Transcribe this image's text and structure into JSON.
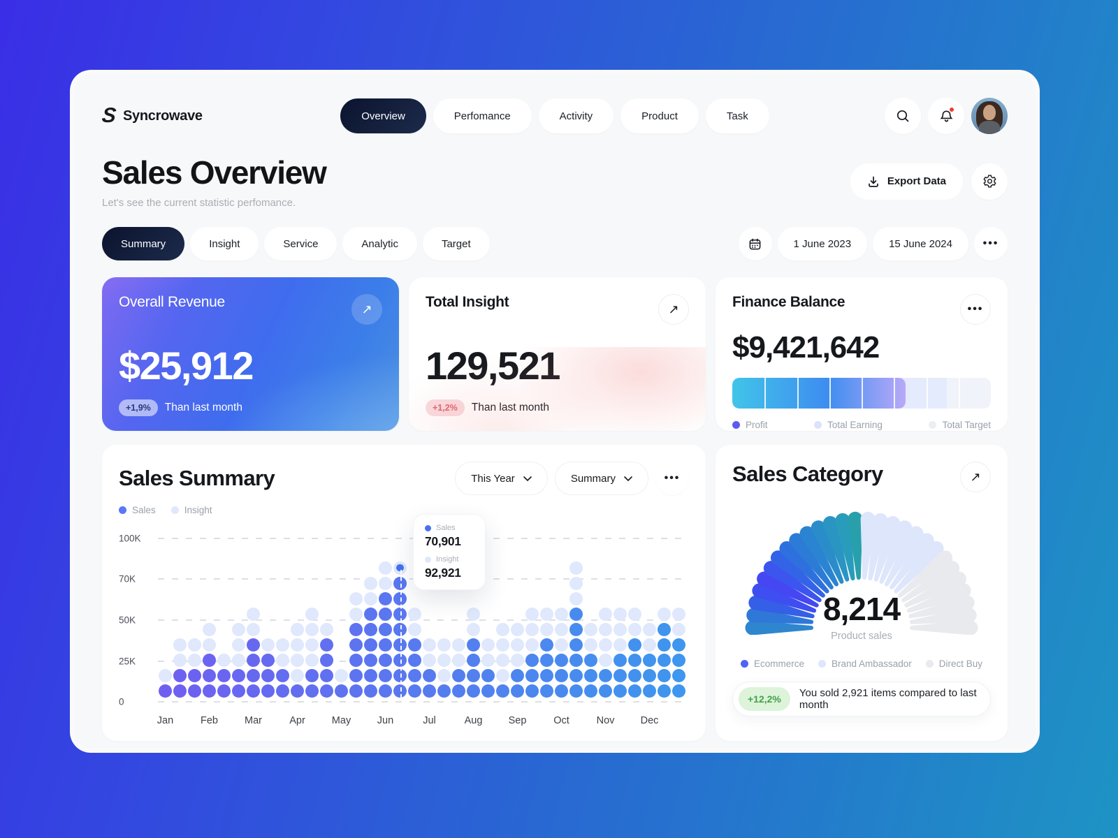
{
  "brand": {
    "name": "Syncrowave"
  },
  "nav": {
    "items": [
      {
        "label": "Overview",
        "active": true
      },
      {
        "label": "Perfomance",
        "active": false
      },
      {
        "label": "Activity",
        "active": false
      },
      {
        "label": "Product",
        "active": false
      },
      {
        "label": "Task",
        "active": false
      }
    ]
  },
  "header_icons": {
    "search": "search-icon",
    "notifications": "bell-icon",
    "avatar": "user-avatar"
  },
  "page": {
    "title": "Sales Overview",
    "subtitle": "Let's see the current statistic perfomance.",
    "export_label": "Export Data"
  },
  "filters": {
    "tabs": [
      {
        "label": "Summary",
        "active": true
      },
      {
        "label": "Insight",
        "active": false
      },
      {
        "label": "Service",
        "active": false
      },
      {
        "label": "Analytic",
        "active": false
      },
      {
        "label": "Target",
        "active": false
      }
    ],
    "date_from": "1 June 2023",
    "date_to": "15 June 2024",
    "more": "•••"
  },
  "cards": {
    "overall_revenue": {
      "title": "Overall Revenue",
      "value": "$25,912",
      "badge": "+1,9%",
      "note": "Than last month"
    },
    "total_insight": {
      "title": "Total Insight",
      "value": "129,521",
      "badge": "+1,2%",
      "note": "Than last month"
    },
    "finance_balance": {
      "title": "Finance Balance",
      "value": "$9,421,642",
      "more": "•••",
      "progress": {
        "fill_percent": 67,
        "secondary_end_percent": 83,
        "segments": 8
      },
      "legend": [
        {
          "label": "Profit",
          "color": "#5a5bf3"
        },
        {
          "label": "Total Earning",
          "color": "#dbe3fb"
        },
        {
          "label": "Total Target",
          "color": "#eceef2"
        }
      ]
    }
  },
  "sales_summary": {
    "title": "Sales Summary",
    "period_select": "This Year",
    "view_select": "Summary",
    "more": "•••",
    "legend": [
      {
        "label": "Sales",
        "color": "#5b76f7"
      },
      {
        "label": "Insight",
        "color": "#dfe8fc"
      }
    ],
    "chart_data": {
      "type": "stacked-dot-columns",
      "y_ticks": [
        "100K",
        "70K",
        "50K",
        "25K",
        "0"
      ],
      "months": [
        "Jan",
        "Feb",
        "Mar",
        "Apr",
        "May",
        "Jun",
        "Jul",
        "Aug",
        "Sep",
        "Oct",
        "Nov",
        "Dec"
      ],
      "series": [
        "Sales",
        "Insight"
      ],
      "columns_per_month": 3,
      "columns": [
        {
          "sales": 1,
          "insight": 1
        },
        {
          "sales": 2,
          "insight": 2
        },
        {
          "sales": 2,
          "insight": 2
        },
        {
          "sales": 3,
          "insight": 2
        },
        {
          "sales": 2,
          "insight": 1
        },
        {
          "sales": 2,
          "insight": 3
        },
        {
          "sales": 4,
          "insight": 2
        },
        {
          "sales": 3,
          "insight": 1
        },
        {
          "sales": 2,
          "insight": 2
        },
        {
          "sales": 1,
          "insight": 4
        },
        {
          "sales": 2,
          "insight": 4
        },
        {
          "sales": 4,
          "insight": 1
        },
        {
          "sales": 1,
          "insight": 1
        },
        {
          "sales": 5,
          "insight": 2
        },
        {
          "sales": 6,
          "insight": 2
        },
        {
          "sales": 7,
          "insight": 2
        },
        {
          "sales": 8,
          "insight": 0
        },
        {
          "sales": 4,
          "insight": 2
        },
        {
          "sales": 2,
          "insight": 2
        },
        {
          "sales": 1,
          "insight": 3
        },
        {
          "sales": 2,
          "insight": 2
        },
        {
          "sales": 4,
          "insight": 2
        },
        {
          "sales": 2,
          "insight": 2
        },
        {
          "sales": 1,
          "insight": 4
        },
        {
          "sales": 2,
          "insight": 3
        },
        {
          "sales": 3,
          "insight": 3
        },
        {
          "sales": 4,
          "insight": 2
        },
        {
          "sales": 3,
          "insight": 3
        },
        {
          "sales": 6,
          "insight": 3
        },
        {
          "sales": 3,
          "insight": 2
        },
        {
          "sales": 2,
          "insight": 4
        },
        {
          "sales": 3,
          "insight": 3
        },
        {
          "sales": 4,
          "insight": 2
        },
        {
          "sales": 3,
          "insight": 2
        },
        {
          "sales": 5,
          "insight": 1
        },
        {
          "sales": 4,
          "insight": 2
        }
      ],
      "highlight": {
        "column_index": 16,
        "month": "Jun",
        "tooltip": {
          "sales_label": "Sales",
          "sales_value": "70,901",
          "insight_label": "Insight",
          "insight_value": "92,921"
        }
      },
      "colors": {
        "sales_start": "#6f5ff1",
        "sales_end": "#3e96ee",
        "insight": "#dfe8fc"
      }
    }
  },
  "sales_category": {
    "title": "Sales Category",
    "total": "8,214",
    "total_label": "Product sales",
    "legend": [
      {
        "label": "Ecommerce",
        "color": "#4f63f3"
      },
      {
        "label": "Brand Ambassador",
        "color": "#dde6fb"
      },
      {
        "label": "Direct Buy",
        "color": "#e9eaed"
      }
    ],
    "badge": "+12,2%",
    "message": "You sold 2,921 items compared to last month",
    "chart_data": {
      "type": "radial-petal-gauge",
      "total_petals": 28,
      "segments": [
        {
          "name": "Ecommerce",
          "petals": 14
        },
        {
          "name": "Brand Ambassador",
          "petals": 7
        },
        {
          "name": "Direct Buy",
          "petals": 7
        }
      ],
      "colors": {
        "ecommerce": [
          "#2e86cf",
          "#2f78d8",
          "#355fe6",
          "#3f4ef0",
          "#4547f3",
          "#3c55ee",
          "#3363e6",
          "#2e70de",
          "#2b7bd7",
          "#2a84d1",
          "#2a8dca",
          "#2a95c3",
          "#2a9cbb",
          "#27a0ac"
        ],
        "brand_ambassador": "#dde6fb",
        "direct_buy": "#e9eaed"
      }
    }
  }
}
